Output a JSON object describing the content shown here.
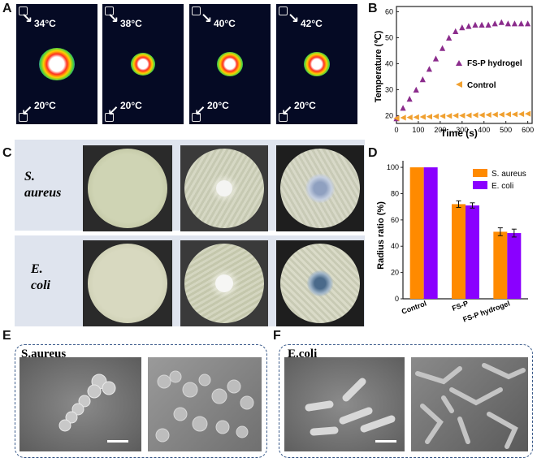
{
  "panel_labels": {
    "a": "A",
    "b": "B",
    "c": "C",
    "d": "D",
    "e": "E",
    "f": "F"
  },
  "thermal": {
    "images": [
      {
        "top": "34°C",
        "bottom": "20°C"
      },
      {
        "top": "38°C",
        "bottom": "20°C"
      },
      {
        "top": "40°C",
        "bottom": "20°C"
      },
      {
        "top": "42°C",
        "bottom": "20°C"
      }
    ]
  },
  "chart_b": {
    "chart_data": {
      "type": "scatter",
      "xlabel": "Time (s)",
      "ylabel": "Temperature (℃)",
      "xlim": [
        0,
        620
      ],
      "ylim": [
        17,
        62
      ],
      "xticks": [
        "0",
        "100",
        "200",
        "300",
        "400",
        "500",
        "600"
      ],
      "yticks": [
        "20",
        "30",
        "40",
        "50",
        "60"
      ],
      "legend_position": "center-right",
      "series": [
        {
          "name": "FS-P hydrogel",
          "marker": "triangle-up",
          "color": "#8b2c8c",
          "x": [
            0,
            30,
            60,
            90,
            120,
            150,
            180,
            210,
            240,
            270,
            300,
            330,
            360,
            390,
            420,
            450,
            480,
            510,
            540,
            570,
            600
          ],
          "y": [
            19,
            23,
            26.5,
            30,
            34,
            38,
            42,
            46,
            50,
            52.5,
            54,
            54.5,
            55,
            55,
            55,
            55.5,
            56,
            55.5,
            55.5,
            55.5,
            55.5
          ]
        },
        {
          "name": "Control",
          "marker": "triangle-left",
          "color": "#f0a030",
          "x": [
            0,
            30,
            60,
            90,
            120,
            150,
            180,
            210,
            240,
            270,
            300,
            330,
            360,
            390,
            420,
            450,
            480,
            510,
            540,
            570,
            600
          ],
          "y": [
            19,
            19.2,
            19.3,
            19.4,
            19.5,
            19.6,
            19.7,
            19.8,
            19.9,
            20,
            20,
            20.1,
            20.2,
            20.2,
            20.3,
            20.4,
            20.4,
            20.5,
            20.5,
            20.6,
            20.7
          ]
        }
      ]
    }
  },
  "plates": {
    "rows": [
      {
        "label_line1": "S.",
        "label_line2": "aureus"
      },
      {
        "label_line1": "E.",
        "label_line2": "coli"
      }
    ]
  },
  "chart_d": {
    "chart_data": {
      "type": "bar",
      "ylabel": "Radius ratio (%)",
      "ylim": [
        0,
        105
      ],
      "yticks": [
        "0",
        "20",
        "40",
        "60",
        "80",
        "100"
      ],
      "categories": [
        "Control",
        "FS-P",
        "FS-P hydrogel"
      ],
      "legend_position": "top-right",
      "series": [
        {
          "name": "S. aureus",
          "color": "#ff8a00",
          "values": [
            100,
            72,
            51
          ],
          "errors": [
            0,
            2.5,
            3
          ]
        },
        {
          "name": "E. coli",
          "color": "#8a00ff",
          "values": [
            100,
            71,
            50
          ],
          "errors": [
            0,
            2,
            3
          ]
        }
      ]
    }
  },
  "sem": {
    "e_title": "S.aureus",
    "f_title": "E.coli"
  }
}
